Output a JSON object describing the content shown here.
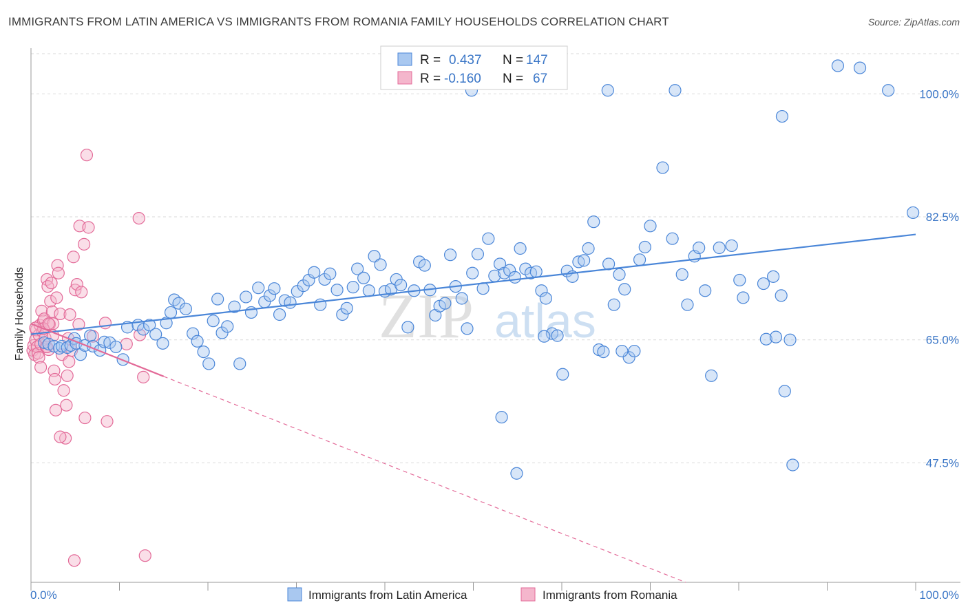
{
  "title": "IMMIGRANTS FROM LATIN AMERICA VS IMMIGRANTS FROM ROMANIA FAMILY HOUSEHOLDS CORRELATION CHART",
  "source": "Source: ZipAtlas.com",
  "colors": {
    "blue": "#4a86d8",
    "blue_fill": "#a9c8f0",
    "pink": "#e36a98",
    "pink_fill": "#f4b6cc",
    "label": "#3a76c7",
    "grid": "#d9d9d9"
  },
  "chart_data": {
    "type": "scatter",
    "title": "IMMIGRANTS FROM LATIN AMERICA VS IMMIGRANTS FROM ROMANIA FAMILY HOUSEHOLDS CORRELATION CHART",
    "ylabel": "Family Households",
    "xlabel": "",
    "xlim": [
      0,
      100
    ],
    "ylim": [
      30.5,
      106.5
    ],
    "x_tick_labels": [
      "0.0%",
      "100.0%"
    ],
    "y_ticks": [
      47.5,
      65.0,
      82.5,
      100.0
    ],
    "y_tick_labels": [
      "47.5%",
      "65.0%",
      "82.5%",
      "100.0%"
    ],
    "legend": {
      "r_label": "R =",
      "n_label": "N =",
      "rows": [
        {
          "r": "0.437",
          "n": "147"
        },
        {
          "r": "-0.160",
          "n": "67"
        }
      ]
    },
    "series": [
      {
        "name": "Immigrants from Latin America",
        "color": "blue",
        "trend": {
          "x0": 0,
          "y0": 65.8,
          "x1": 100,
          "y1": 80.0,
          "dashed_to": null
        },
        "points": [
          [
            1.5,
            64.6
          ],
          [
            2.0,
            64.4
          ],
          [
            2.6,
            64.1
          ],
          [
            3.2,
            63.8
          ],
          [
            3.5,
            64.1
          ],
          [
            4.1,
            63.9
          ],
          [
            4.5,
            64.2
          ],
          [
            4.9,
            65.2
          ],
          [
            5.1,
            64.5
          ],
          [
            5.6,
            62.9
          ],
          [
            6.1,
            64.2
          ],
          [
            6.7,
            65.6
          ],
          [
            7.0,
            64.1
          ],
          [
            7.8,
            63.5
          ],
          [
            8.3,
            64.7
          ],
          [
            8.9,
            64.6
          ],
          [
            9.6,
            64.0
          ],
          [
            10.4,
            62.2
          ],
          [
            10.9,
            66.8
          ],
          [
            12.1,
            67.1
          ],
          [
            12.7,
            66.5
          ],
          [
            13.4,
            67.1
          ],
          [
            14.1,
            65.8
          ],
          [
            14.9,
            64.5
          ],
          [
            15.3,
            67.4
          ],
          [
            15.8,
            68.9
          ],
          [
            16.2,
            70.7
          ],
          [
            16.7,
            70.2
          ],
          [
            17.5,
            69.4
          ],
          [
            18.3,
            65.9
          ],
          [
            18.8,
            64.8
          ],
          [
            19.5,
            63.3
          ],
          [
            20.1,
            61.6
          ],
          [
            20.6,
            67.7
          ],
          [
            21.1,
            70.8
          ],
          [
            21.6,
            66.0
          ],
          [
            22.2,
            66.9
          ],
          [
            23.0,
            69.7
          ],
          [
            23.6,
            61.6
          ],
          [
            24.3,
            71.1
          ],
          [
            24.9,
            68.9
          ],
          [
            25.7,
            72.4
          ],
          [
            26.4,
            70.4
          ],
          [
            27.0,
            71.3
          ],
          [
            27.5,
            72.3
          ],
          [
            28.1,
            68.6
          ],
          [
            28.7,
            70.6
          ],
          [
            29.3,
            70.3
          ],
          [
            30.1,
            71.9
          ],
          [
            30.8,
            72.7
          ],
          [
            31.4,
            73.5
          ],
          [
            32.0,
            74.6
          ],
          [
            32.7,
            70.0
          ],
          [
            33.2,
            73.6
          ],
          [
            33.8,
            74.4
          ],
          [
            34.6,
            72.1
          ],
          [
            35.2,
            68.6
          ],
          [
            35.7,
            69.5
          ],
          [
            36.4,
            72.5
          ],
          [
            36.9,
            75.1
          ],
          [
            37.6,
            73.8
          ],
          [
            38.2,
            72.0
          ],
          [
            38.8,
            76.9
          ],
          [
            39.5,
            75.7
          ],
          [
            40.0,
            71.9
          ],
          [
            40.7,
            72.2
          ],
          [
            41.3,
            73.6
          ],
          [
            41.8,
            72.8
          ],
          [
            42.6,
            66.8
          ],
          [
            43.3,
            72.0
          ],
          [
            43.9,
            76.1
          ],
          [
            44.5,
            75.6
          ],
          [
            45.1,
            72.1
          ],
          [
            45.7,
            68.5
          ],
          [
            46.2,
            69.8
          ],
          [
            46.8,
            70.2
          ],
          [
            47.4,
            77.1
          ],
          [
            48.0,
            72.6
          ],
          [
            48.7,
            70.9
          ],
          [
            49.3,
            66.6
          ],
          [
            49.9,
            74.5
          ],
          [
            50.5,
            77.2
          ],
          [
            51.1,
            72.3
          ],
          [
            51.7,
            79.4
          ],
          [
            52.4,
            74.1
          ],
          [
            53.0,
            75.8
          ],
          [
            53.5,
            74.5
          ],
          [
            54.1,
            74.9
          ],
          [
            54.7,
            73.9
          ],
          [
            55.3,
            78.0
          ],
          [
            55.9,
            75.1
          ],
          [
            56.5,
            74.5
          ],
          [
            57.1,
            74.7
          ],
          [
            57.7,
            72.0
          ],
          [
            58.2,
            70.9
          ],
          [
            58.9,
            65.9
          ],
          [
            59.5,
            65.6
          ],
          [
            60.1,
            60.1
          ],
          [
            60.6,
            74.8
          ],
          [
            61.2,
            74.0
          ],
          [
            61.9,
            76.1
          ],
          [
            62.5,
            76.3
          ],
          [
            63.0,
            78.0
          ],
          [
            63.6,
            81.8
          ],
          [
            64.2,
            63.6
          ],
          [
            64.7,
            63.3
          ],
          [
            65.3,
            75.8
          ],
          [
            65.9,
            70.0
          ],
          [
            66.5,
            74.3
          ],
          [
            67.1,
            72.2
          ],
          [
            67.6,
            62.5
          ],
          [
            68.2,
            63.4
          ],
          [
            68.8,
            76.4
          ],
          [
            69.4,
            78.2
          ],
          [
            70.0,
            81.2
          ],
          [
            71.4,
            89.5
          ],
          [
            72.5,
            79.4
          ],
          [
            73.6,
            74.3
          ],
          [
            74.2,
            70.0
          ],
          [
            75.0,
            76.9
          ],
          [
            75.5,
            78.1
          ],
          [
            76.2,
            72.0
          ],
          [
            76.9,
            59.9
          ],
          [
            77.8,
            78.1
          ],
          [
            79.2,
            78.4
          ],
          [
            80.1,
            73.5
          ],
          [
            80.5,
            71.0
          ],
          [
            82.8,
            73.0
          ],
          [
            83.1,
            65.1
          ],
          [
            83.9,
            74.0
          ],
          [
            84.2,
            65.4
          ],
          [
            84.8,
            71.3
          ],
          [
            85.2,
            57.7
          ],
          [
            85.8,
            65.0
          ],
          [
            86.1,
            47.2
          ],
          [
            84.9,
            96.8
          ],
          [
            91.2,
            104.0
          ],
          [
            93.7,
            103.7
          ],
          [
            96.9,
            100.5
          ],
          [
            99.7,
            83.1
          ],
          [
            53.2,
            54.0
          ],
          [
            54.9,
            46.0
          ],
          [
            65.2,
            100.5
          ],
          [
            49.8,
            100.5
          ],
          [
            72.8,
            100.5
          ],
          [
            66.8,
            63.4
          ],
          [
            58.0,
            65.5
          ]
        ]
      },
      {
        "name": "Immigrants from Romania",
        "color": "pink",
        "trend": {
          "x0": 0,
          "y0": 67.3,
          "x1": 15.0,
          "y1": 59.8,
          "dashed_to": {
            "x": 74.0,
            "y": 30.5
          }
        },
        "points": [
          [
            0.2,
            63.5
          ],
          [
            0.3,
            64.2
          ],
          [
            0.4,
            62.9
          ],
          [
            0.5,
            65.0
          ],
          [
            0.6,
            66.4
          ],
          [
            0.7,
            64.0
          ],
          [
            0.8,
            63.1
          ],
          [
            0.9,
            65.7
          ],
          [
            1.0,
            67.1
          ],
          [
            1.1,
            64.4
          ],
          [
            1.2,
            69.1
          ],
          [
            1.3,
            66.2
          ],
          [
            1.4,
            67.7
          ],
          [
            1.5,
            68.0
          ],
          [
            1.6,
            65.3
          ],
          [
            1.7,
            64.0
          ],
          [
            1.8,
            73.6
          ],
          [
            1.9,
            72.6
          ],
          [
            2.0,
            63.6
          ],
          [
            2.1,
            67.2
          ],
          [
            2.2,
            70.5
          ],
          [
            2.3,
            73.1
          ],
          [
            2.4,
            69.0
          ],
          [
            2.5,
            67.3
          ],
          [
            2.6,
            60.6
          ],
          [
            2.7,
            59.4
          ],
          [
            2.8,
            55.0
          ],
          [
            2.9,
            71.0
          ],
          [
            3.0,
            75.6
          ],
          [
            3.1,
            74.5
          ],
          [
            3.3,
            68.7
          ],
          [
            3.5,
            62.9
          ],
          [
            3.7,
            57.8
          ],
          [
            3.9,
            51.0
          ],
          [
            4.0,
            55.7
          ],
          [
            4.1,
            59.9
          ],
          [
            4.2,
            65.2
          ],
          [
            4.3,
            61.9
          ],
          [
            4.4,
            68.6
          ],
          [
            4.6,
            63.5
          ],
          [
            4.8,
            76.8
          ],
          [
            5.0,
            72.1
          ],
          [
            5.2,
            72.9
          ],
          [
            5.4,
            67.2
          ],
          [
            5.5,
            81.2
          ],
          [
            5.7,
            71.8
          ],
          [
            6.0,
            78.6
          ],
          [
            6.1,
            53.9
          ],
          [
            6.3,
            91.3
          ],
          [
            6.5,
            81.0
          ],
          [
            7.0,
            65.5
          ],
          [
            10.8,
            64.4
          ],
          [
            12.2,
            82.3
          ],
          [
            12.3,
            65.7
          ],
          [
            12.7,
            59.7
          ],
          [
            12.9,
            34.3
          ],
          [
            8.4,
            67.4
          ],
          [
            8.6,
            53.4
          ],
          [
            4.9,
            33.6
          ],
          [
            1.4,
            66.6
          ],
          [
            0.9,
            62.5
          ],
          [
            2.0,
            67.3
          ],
          [
            2.5,
            65.6
          ],
          [
            1.1,
            61.1
          ],
          [
            3.3,
            51.2
          ],
          [
            0.5,
            66.7
          ],
          [
            1.8,
            64.0
          ]
        ]
      }
    ]
  },
  "bottom_legend": [
    {
      "label": "Immigrants from Latin America",
      "color": "blue"
    },
    {
      "label": "Immigrants from Romania",
      "color": "pink"
    }
  ],
  "watermark": {
    "zip": "ZIP",
    "atlas": "atlas"
  }
}
